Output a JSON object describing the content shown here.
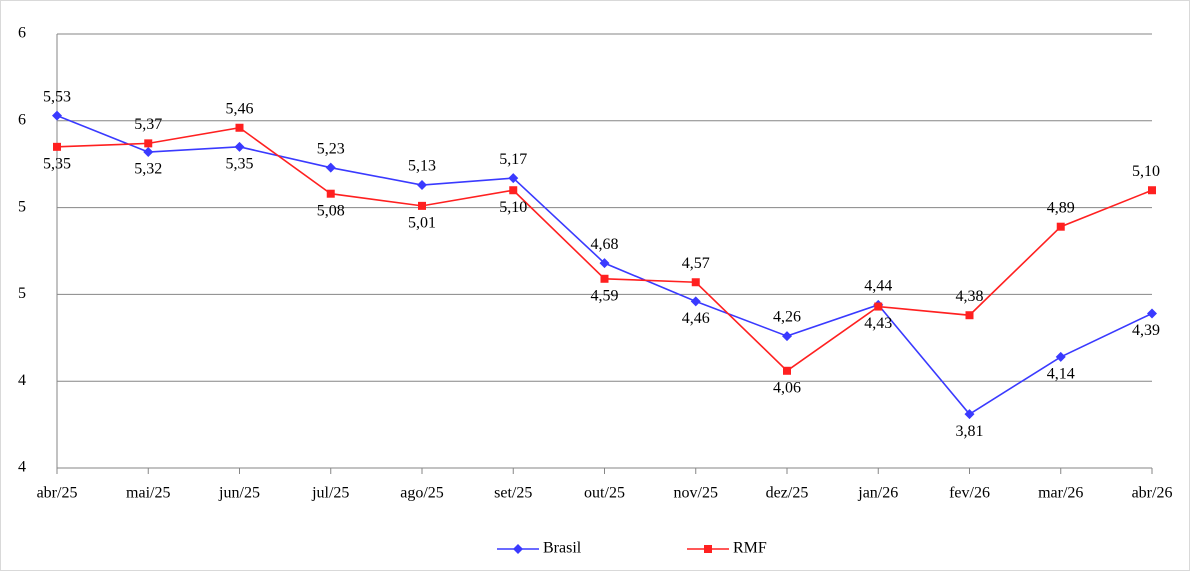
{
  "chart_data": {
    "type": "line",
    "categories": [
      "abr/25",
      "mai/25",
      "jun/25",
      "jul/25",
      "ago/25",
      "set/25",
      "out/25",
      "nov/25",
      "dez/25",
      "jan/26",
      "fev/26",
      "mar/26",
      "abr/26"
    ],
    "series": [
      {
        "name": "Brasil",
        "color": "#3a3aff",
        "marker": "diamond",
        "values": [
          5.53,
          5.32,
          5.35,
          5.23,
          5.13,
          5.17,
          4.68,
          4.46,
          4.26,
          4.44,
          3.81,
          4.14,
          4.39
        ],
        "value_labels": [
          "5,53",
          "5,32",
          "5,35",
          "5,23",
          "5,13",
          "5,17",
          "4,68",
          "4,46",
          "4,26",
          "4,44",
          "3,81",
          "4,14",
          "4,39"
        ]
      },
      {
        "name": "RMF",
        "color": "#ff2020",
        "marker": "square",
        "values": [
          5.35,
          5.37,
          5.46,
          5.08,
          5.01,
          5.1,
          4.59,
          4.57,
          4.06,
          4.43,
          4.38,
          4.89,
          5.1
        ],
        "value_labels": [
          "5,35",
          "5,37",
          "5,46",
          "5,08",
          "5,01",
          "5,10",
          "4,59",
          "4,57",
          "4,06",
          "4,43",
          "4,38",
          "4,89",
          "5,10"
        ]
      }
    ],
    "ylim": [
      3.5,
      6
    ],
    "yticks": [
      {
        "value": 3.5,
        "label": "4"
      },
      {
        "value": 4,
        "label": "4"
      },
      {
        "value": 4.5,
        "label": "5"
      },
      {
        "value": 5,
        "label": "5"
      },
      {
        "value": 5.5,
        "label": "6"
      },
      {
        "value": 6,
        "label": "6"
      }
    ],
    "grid": true,
    "legend": "bottom"
  }
}
